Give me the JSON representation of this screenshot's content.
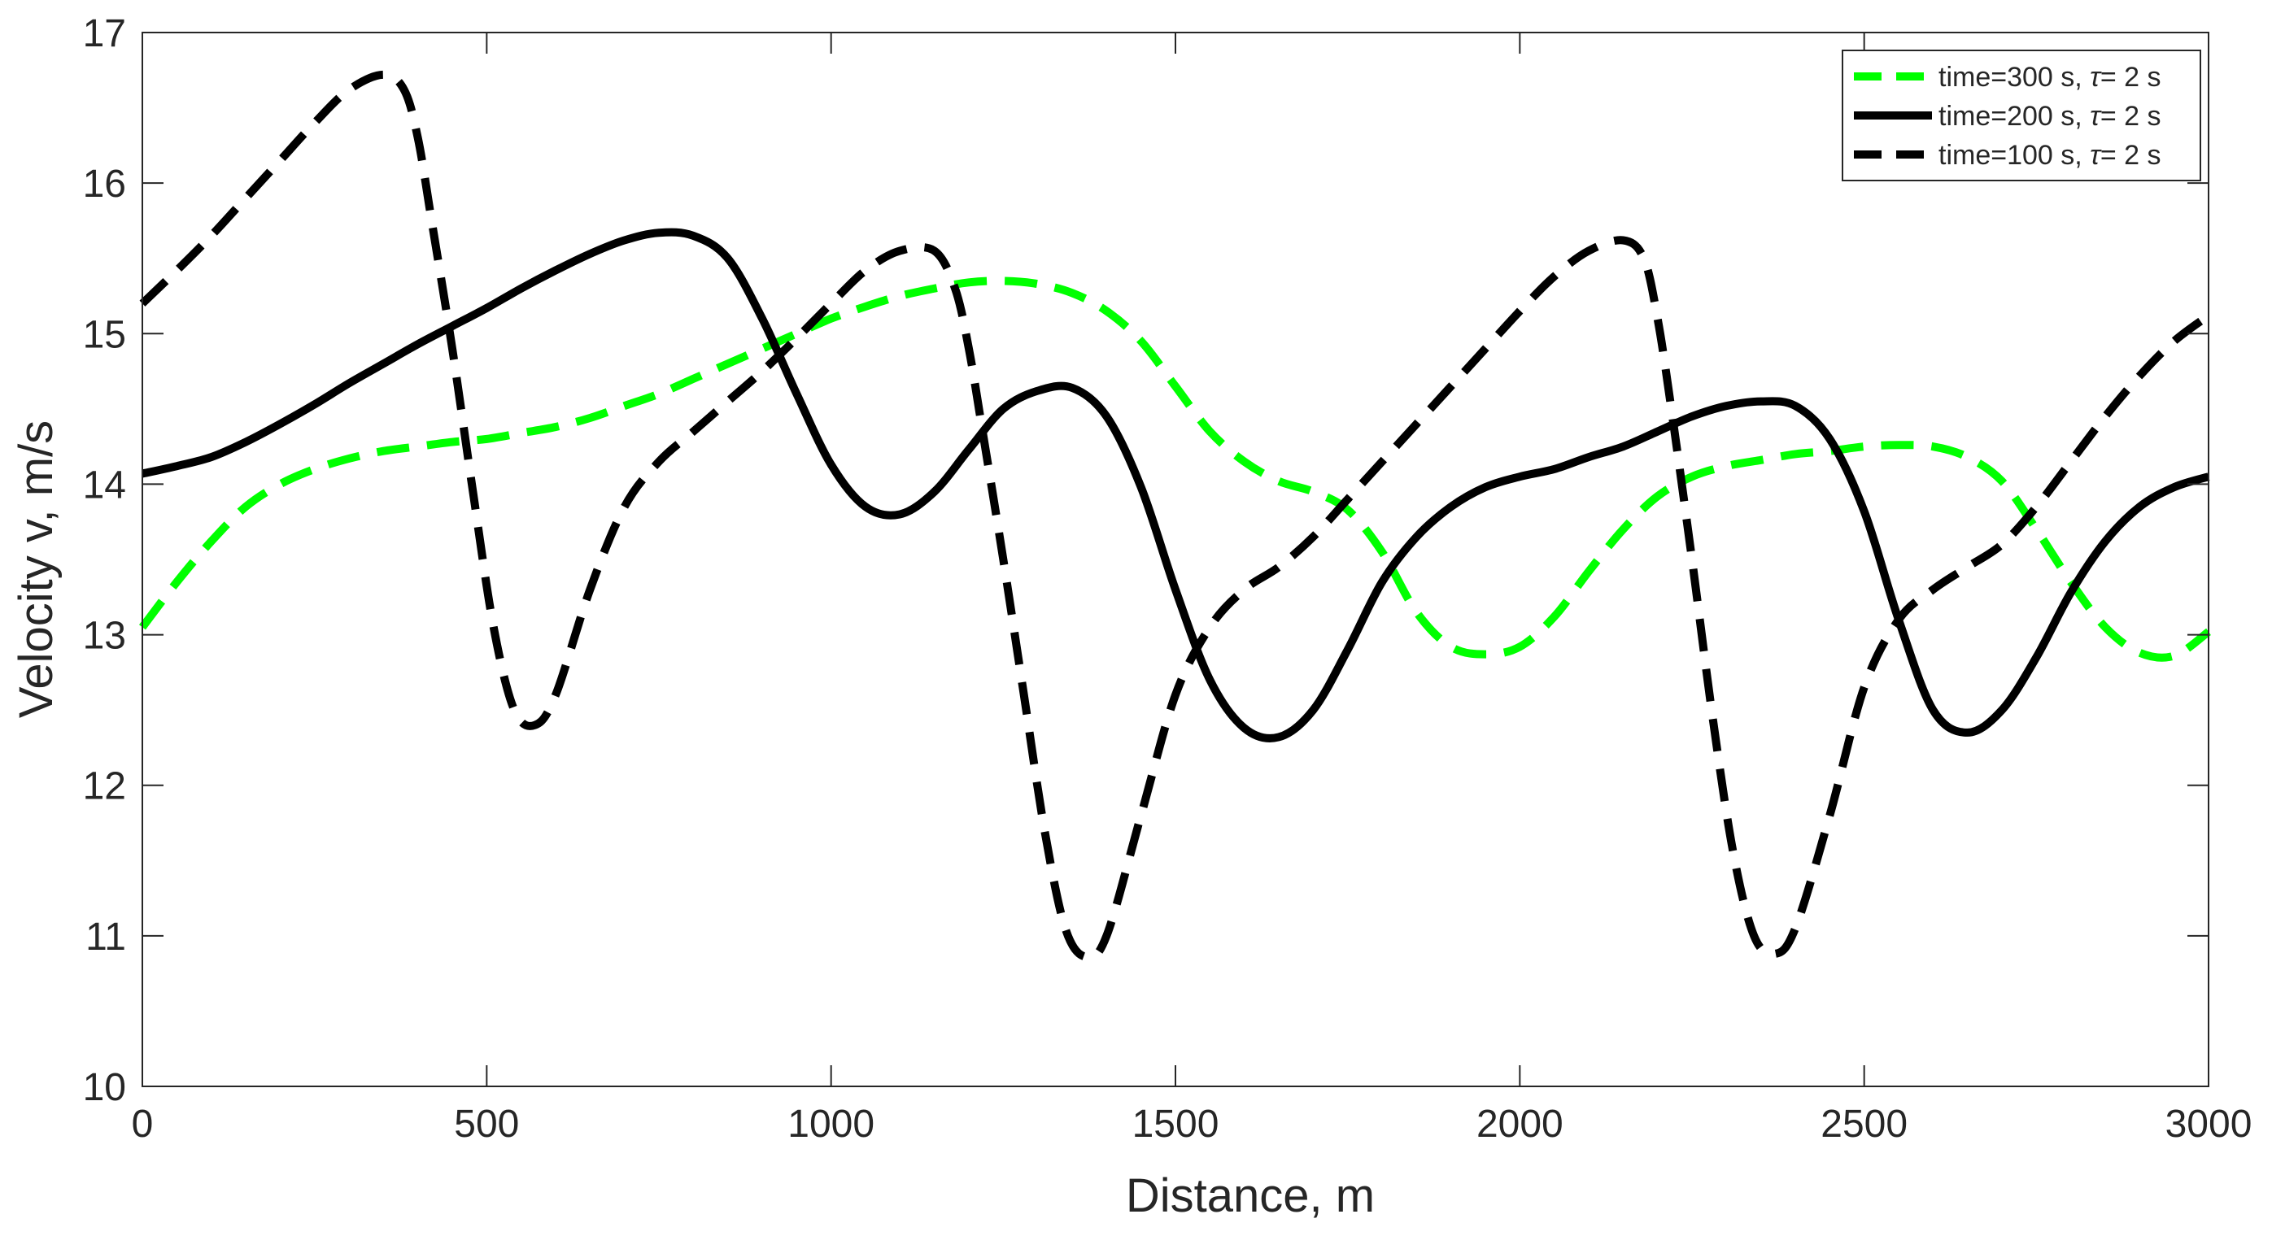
{
  "chart_data": {
    "type": "line",
    "title": "",
    "xlabel": "Distance, m",
    "ylabel": "Velocity v, m/s",
    "xlim": [
      0,
      3000
    ],
    "ylim": [
      10,
      17
    ],
    "xticks": [
      0,
      500,
      1000,
      1500,
      2000,
      2500,
      3000
    ],
    "yticks": [
      10,
      11,
      12,
      13,
      14,
      15,
      16,
      17
    ],
    "grid": false,
    "legend_position": "top-right",
    "series": [
      {
        "name": "time=300 s, τ= 2 s",
        "legend_prefix": "time=300 s, ",
        "legend_symbol": "τ",
        "legend_suffix": "= 2 s",
        "color": "#00ff00",
        "dash": "dashed",
        "x": [
          0,
          50,
          100,
          150,
          200,
          250,
          300,
          350,
          400,
          450,
          500,
          550,
          600,
          650,
          700,
          750,
          800,
          850,
          900,
          950,
          1000,
          1050,
          1100,
          1150,
          1200,
          1250,
          1300,
          1350,
          1400,
          1450,
          1500,
          1550,
          1600,
          1650,
          1700,
          1750,
          1800,
          1850,
          1900,
          1950,
          2000,
          2050,
          2100,
          2150,
          2200,
          2250,
          2300,
          2350,
          2400,
          2450,
          2500,
          2550,
          2600,
          2650,
          2700,
          2750,
          2800,
          2850,
          2900,
          2950,
          3000
        ],
        "y": [
          13.05,
          13.35,
          13.62,
          13.85,
          14.0,
          14.1,
          14.17,
          14.22,
          14.25,
          14.28,
          14.3,
          14.34,
          14.38,
          14.44,
          14.52,
          14.6,
          14.7,
          14.8,
          14.9,
          15.0,
          15.1,
          15.18,
          15.25,
          15.3,
          15.34,
          15.35,
          15.33,
          15.27,
          15.15,
          14.95,
          14.65,
          14.35,
          14.15,
          14.02,
          13.95,
          13.83,
          13.55,
          13.15,
          12.92,
          12.87,
          12.92,
          13.12,
          13.42,
          13.7,
          13.92,
          14.05,
          14.12,
          14.16,
          14.2,
          14.22,
          14.25,
          14.26,
          14.25,
          14.18,
          14.02,
          13.7,
          13.35,
          13.05,
          12.88,
          12.86,
          13.02
        ]
      },
      {
        "name": "time=200 s, τ= 2 s",
        "legend_prefix": "time=200 s, ",
        "legend_symbol": "τ",
        "legend_suffix": "= 2 s",
        "color": "#000000",
        "dash": "solid",
        "x": [
          0,
          50,
          100,
          150,
          200,
          250,
          300,
          350,
          400,
          450,
          500,
          550,
          600,
          650,
          700,
          750,
          800,
          850,
          900,
          950,
          1000,
          1050,
          1100,
          1150,
          1200,
          1250,
          1300,
          1350,
          1400,
          1450,
          1500,
          1550,
          1600,
          1650,
          1700,
          1750,
          1800,
          1850,
          1900,
          1950,
          2000,
          2050,
          2100,
          2150,
          2200,
          2250,
          2300,
          2350,
          2400,
          2450,
          2500,
          2550,
          2600,
          2650,
          2700,
          2750,
          2800,
          2850,
          2900,
          2950,
          3000
        ],
        "y": [
          14.07,
          14.12,
          14.18,
          14.28,
          14.4,
          14.53,
          14.67,
          14.8,
          14.93,
          15.05,
          15.17,
          15.3,
          15.42,
          15.53,
          15.62,
          15.67,
          15.65,
          15.5,
          15.1,
          14.6,
          14.13,
          13.85,
          13.8,
          13.95,
          14.23,
          14.5,
          14.62,
          14.64,
          14.45,
          13.98,
          13.3,
          12.7,
          12.38,
          12.32,
          12.5,
          12.9,
          13.35,
          13.65,
          13.85,
          13.98,
          14.05,
          14.1,
          14.18,
          14.25,
          14.35,
          14.45,
          14.52,
          14.55,
          14.52,
          14.3,
          13.82,
          13.1,
          12.5,
          12.35,
          12.5,
          12.85,
          13.28,
          13.62,
          13.85,
          13.98,
          14.05
        ]
      },
      {
        "name": "time=100 s, τ= 2 s",
        "legend_prefix": "time=100 s, ",
        "legend_symbol": "τ",
        "legend_suffix": "= 2 s",
        "color": "#000000",
        "dash": "dashed",
        "x": [
          0,
          50,
          100,
          150,
          200,
          250,
          300,
          350,
          380,
          400,
          420,
          450,
          480,
          510,
          540,
          570,
          600,
          650,
          700,
          750,
          800,
          850,
          900,
          950,
          1000,
          1050,
          1100,
          1150,
          1180,
          1200,
          1220,
          1250,
          1280,
          1310,
          1340,
          1370,
          1400,
          1450,
          1500,
          1550,
          1600,
          1650,
          1700,
          1750,
          1800,
          1850,
          1900,
          1950,
          2000,
          2050,
          2100,
          2150,
          2180,
          2200,
          2220,
          2250,
          2280,
          2310,
          2340,
          2370,
          2400,
          2450,
          2500,
          2550,
          2600,
          2650,
          2700,
          2750,
          2800,
          2850,
          2900,
          2950,
          3000
        ],
        "y": [
          15.2,
          15.42,
          15.65,
          15.9,
          16.15,
          16.4,
          16.62,
          16.72,
          16.62,
          16.3,
          15.75,
          14.9,
          13.95,
          13.05,
          12.5,
          12.4,
          12.6,
          13.3,
          13.85,
          14.15,
          14.35,
          14.55,
          14.75,
          14.97,
          15.2,
          15.42,
          15.55,
          15.55,
          15.3,
          14.9,
          14.35,
          13.5,
          12.6,
          11.7,
          11.05,
          10.86,
          11.0,
          11.8,
          12.6,
          13.05,
          13.3,
          13.45,
          13.65,
          13.9,
          14.15,
          14.4,
          14.65,
          14.9,
          15.15,
          15.38,
          15.55,
          15.62,
          15.5,
          15.1,
          14.5,
          13.5,
          12.45,
          11.55,
          11.0,
          10.88,
          11.05,
          11.8,
          12.65,
          13.1,
          13.3,
          13.45,
          13.6,
          13.85,
          14.15,
          14.45,
          14.72,
          14.95,
          15.12
        ]
      }
    ]
  }
}
